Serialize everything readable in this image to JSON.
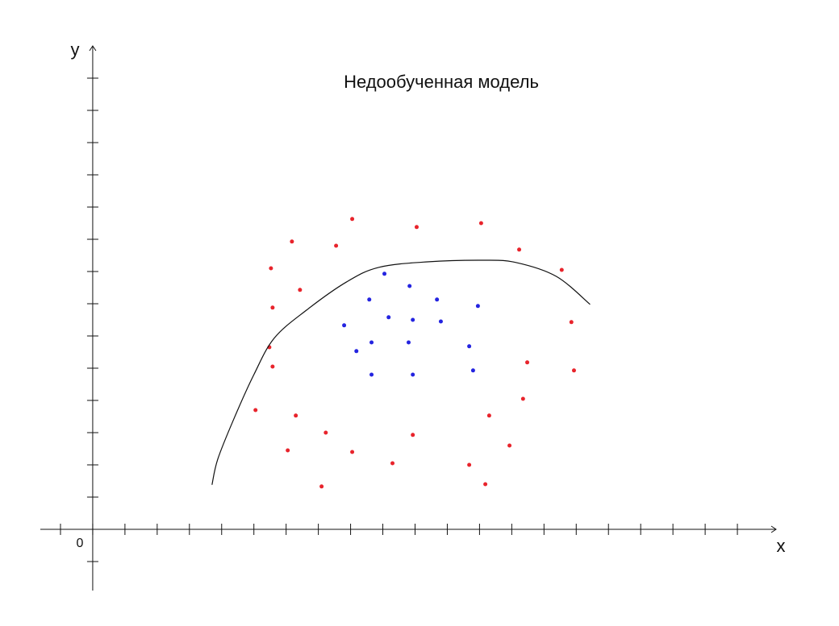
{
  "chart_data": {
    "type": "scatter",
    "title": "Недообученная модель",
    "x_label": "x",
    "y_label": "y",
    "origin_label": "0",
    "xlim": [
      -1.625,
      21.2
    ],
    "ylim": [
      -1.9,
      15
    ],
    "xticks": [
      -1,
      0,
      1,
      2,
      3,
      4,
      5,
      6,
      7,
      8,
      9,
      10,
      11,
      12,
      13,
      14,
      15,
      16,
      17,
      18,
      19,
      20
    ],
    "yticks": [
      -1,
      0,
      1,
      2,
      3,
      4,
      5,
      6,
      7,
      8,
      9,
      10,
      11,
      12,
      13,
      14
    ],
    "series": [
      {
        "color": "#e8242c",
        "kind": "points",
        "x": [
          8.05,
          10.05,
          12.05,
          6.18,
          7.55,
          13.23,
          5.53,
          14.55,
          6.43,
          5.58,
          14.85,
          5.48,
          5.58,
          13.48,
          14.93,
          13.35,
          5.05,
          6.3,
          12.3,
          7.23,
          9.93,
          12.93,
          6.05,
          8.05,
          9.3,
          11.68,
          7.1,
          12.18
        ],
        "values": [
          9.63,
          9.38,
          9.5,
          8.93,
          8.8,
          8.68,
          8.1,
          8.05,
          7.43,
          6.88,
          6.43,
          5.65,
          5.05,
          5.18,
          4.93,
          4.05,
          3.7,
          3.53,
          3.53,
          3.0,
          2.93,
          2.6,
          2.45,
          2.4,
          2.05,
          2.0,
          1.33,
          1.4
        ]
      },
      {
        "color": "#2424e0",
        "kind": "points",
        "x": [
          9.05,
          9.83,
          8.58,
          10.68,
          11.95,
          9.18,
          9.93,
          10.8,
          7.8,
          8.65,
          9.8,
          11.68,
          8.18,
          8.65,
          9.93,
          11.8
        ],
        "values": [
          7.93,
          7.55,
          7.13,
          7.13,
          6.93,
          6.58,
          6.5,
          6.45,
          6.33,
          5.8,
          5.8,
          5.68,
          5.53,
          4.8,
          4.8,
          4.93
        ]
      },
      {
        "color": "#111111",
        "kind": "line",
        "x": [
          3.7,
          3.88,
          4.38,
          5.0,
          5.63,
          6.63,
          7.88,
          8.88,
          10.38,
          12.13,
          13.13,
          14.38,
          15.43
        ],
        "values": [
          1.38,
          2.18,
          3.43,
          4.8,
          5.93,
          6.8,
          7.68,
          8.13,
          8.3,
          8.35,
          8.28,
          7.85,
          6.98
        ]
      }
    ]
  }
}
